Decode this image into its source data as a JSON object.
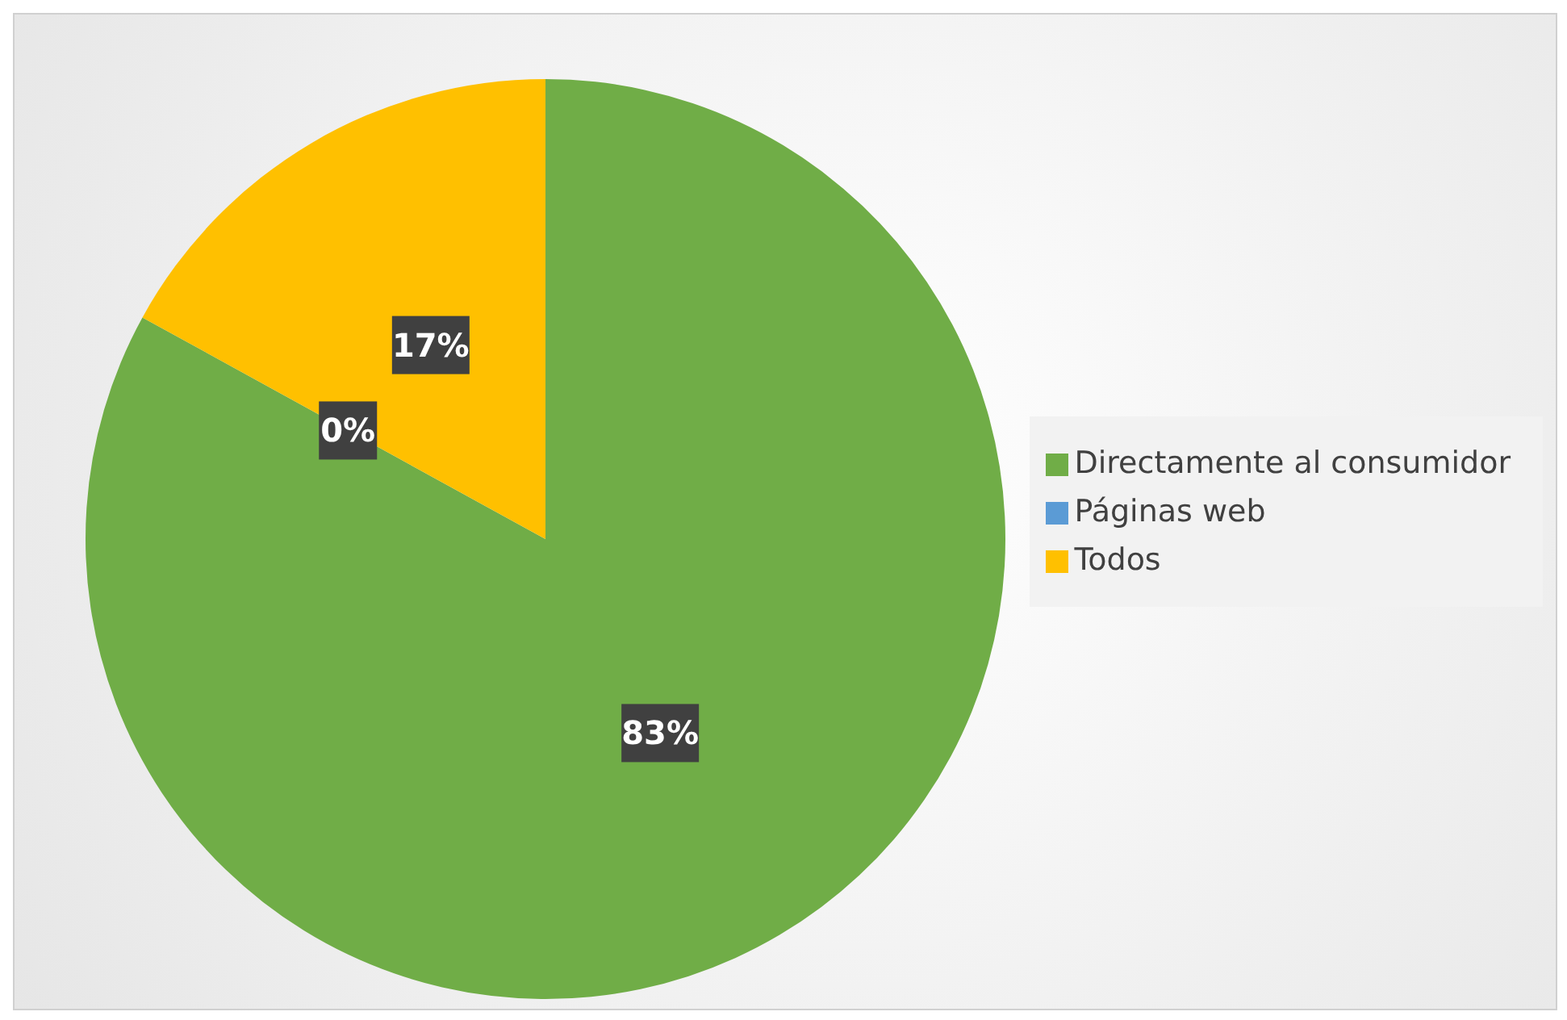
{
  "chart_data": {
    "type": "pie",
    "categories": [
      "Directamente al consumidor",
      "Páginas web",
      "Todos"
    ],
    "values": [
      83,
      0,
      17
    ],
    "colors": [
      "#70ad47",
      "#5b9bd5",
      "#ffc000"
    ],
    "value_labels": [
      "83%",
      "0%",
      "17%"
    ],
    "legend": "right"
  }
}
